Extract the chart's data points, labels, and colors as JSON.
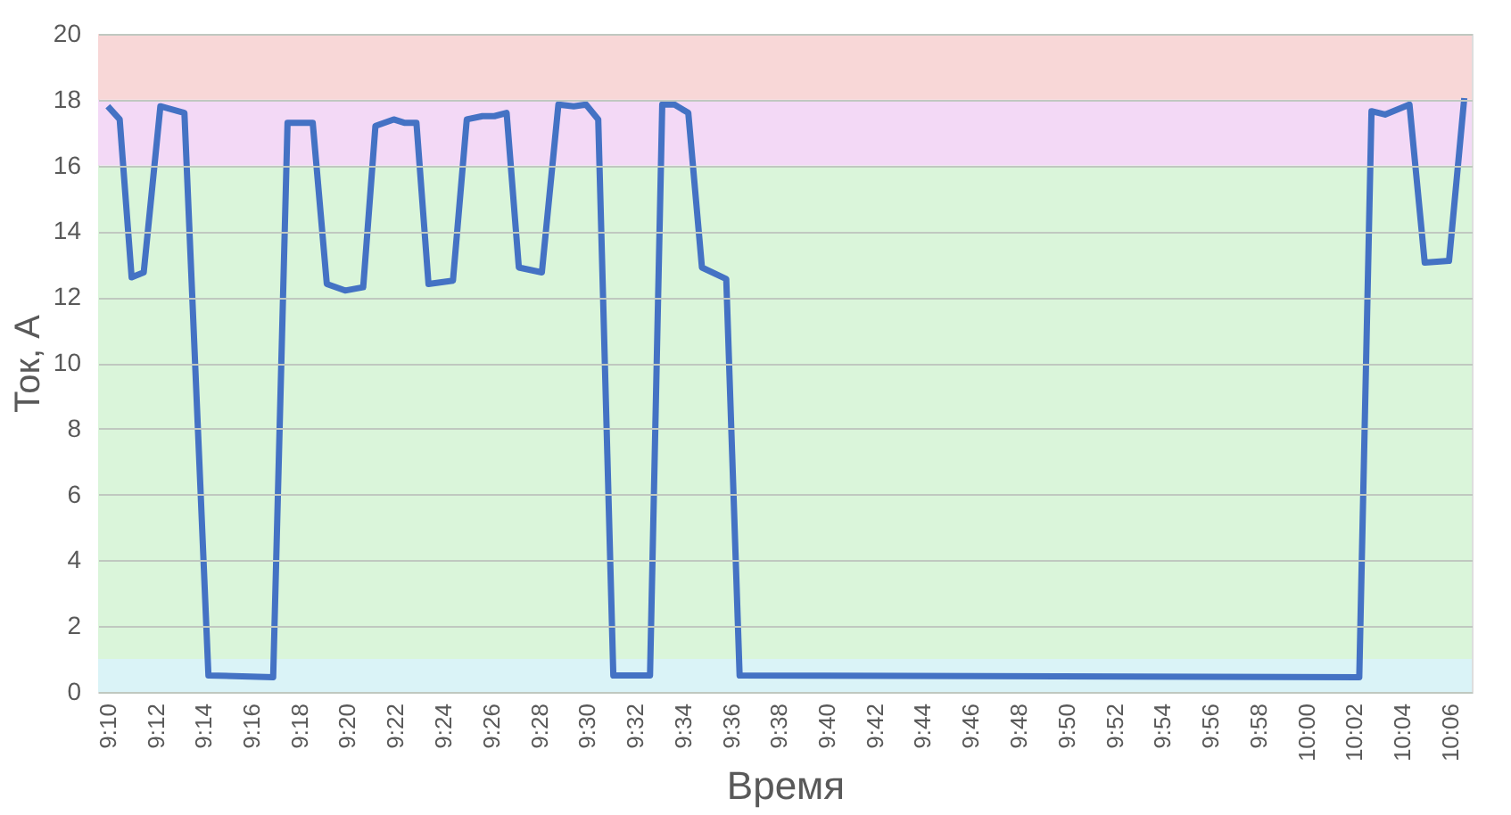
{
  "chart_data": {
    "type": "line",
    "xlabel": "Время",
    "ylabel": "Ток, А",
    "x": [
      9.1667,
      9.175,
      9.1833,
      9.1917,
      9.2033,
      9.22,
      9.2367,
      9.2817,
      9.2917,
      9.3092,
      9.319,
      9.3317,
      9.3443,
      9.3528,
      9.3655,
      9.3728,
      9.3813,
      9.3897,
      9.4067,
      9.4163,
      9.4272,
      9.4355,
      9.444,
      9.4525,
      9.4685,
      9.48,
      9.4907,
      9.4992,
      9.5077,
      9.5182,
      9.5437,
      9.5522,
      9.5607,
      9.5703,
      9.5798,
      9.5967,
      9.606,
      10.0368,
      10.0453,
      10.0547,
      10.0717,
      10.0823,
      10.0992,
      10.1098
    ],
    "series": [
      {
        "color": "#4472c4",
        "values": [
          17.8,
          17.4,
          12.6,
          12.75,
          17.8,
          17.6,
          0.5,
          0.45,
          17.3,
          17.3,
          12.4,
          12.2,
          12.3,
          17.2,
          17.4,
          17.3,
          17.3,
          12.4,
          12.5,
          17.4,
          17.5,
          17.5,
          17.6,
          12.9,
          12.75,
          17.85,
          17.8,
          17.85,
          17.4,
          0.5,
          0.5,
          17.85,
          17.85,
          17.6,
          12.9,
          12.55,
          0.5,
          0.45,
          17.65,
          17.55,
          17.85,
          13.05,
          13.1,
          18.05
        ]
      }
    ],
    "xlim": [
      9.16,
      10.115
    ],
    "xticks": [
      {
        "value": 9.1667,
        "label": "9:10"
      },
      {
        "value": 9.2,
        "label": "9:12"
      },
      {
        "value": 9.2333,
        "label": "9:14"
      },
      {
        "value": 9.2667,
        "label": "9:16"
      },
      {
        "value": 9.3,
        "label": "9:18"
      },
      {
        "value": 9.3333,
        "label": "9:20"
      },
      {
        "value": 9.3667,
        "label": "9:22"
      },
      {
        "value": 9.4,
        "label": "9:24"
      },
      {
        "value": 9.4333,
        "label": "9:26"
      },
      {
        "value": 9.4667,
        "label": "9:28"
      },
      {
        "value": 9.5,
        "label": "9:30"
      },
      {
        "value": 9.5333,
        "label": "9:32"
      },
      {
        "value": 9.5667,
        "label": "9:34"
      },
      {
        "value": 9.6,
        "label": "9:36"
      },
      {
        "value": 9.6333,
        "label": "9:38"
      },
      {
        "value": 9.6667,
        "label": "9:40"
      },
      {
        "value": 9.7,
        "label": "9:42"
      },
      {
        "value": 9.7333,
        "label": "9:44"
      },
      {
        "value": 9.7667,
        "label": "9:46"
      },
      {
        "value": 9.8,
        "label": "9:48"
      },
      {
        "value": 9.8333,
        "label": "9:50"
      },
      {
        "value": 9.8667,
        "label": "9:52"
      },
      {
        "value": 9.9,
        "label": "9:54"
      },
      {
        "value": 9.9333,
        "label": "9:56"
      },
      {
        "value": 9.9667,
        "label": "9:58"
      },
      {
        "value": 10.0,
        "label": "10:00"
      },
      {
        "value": 10.0333,
        "label": "10:02"
      },
      {
        "value": 10.0667,
        "label": "10:04"
      },
      {
        "value": 10.1,
        "label": "10:06"
      }
    ],
    "ylim": [
      0,
      20
    ],
    "yticks": [
      0,
      2,
      4,
      6,
      8,
      10,
      12,
      14,
      16,
      18,
      20
    ],
    "grid": "y",
    "marker": "none",
    "line_style": "solid",
    "bands": [
      {
        "axis": "y",
        "from": 0,
        "to": 1,
        "color": "#daf3f7"
      },
      {
        "axis": "y",
        "from": 1,
        "to": 16,
        "color": "#daf5da"
      },
      {
        "axis": "y",
        "from": 16,
        "to": 18,
        "color": "#f3d9f6"
      },
      {
        "axis": "y",
        "from": 18,
        "to": 20,
        "color": "#f8d7d7"
      }
    ]
  }
}
